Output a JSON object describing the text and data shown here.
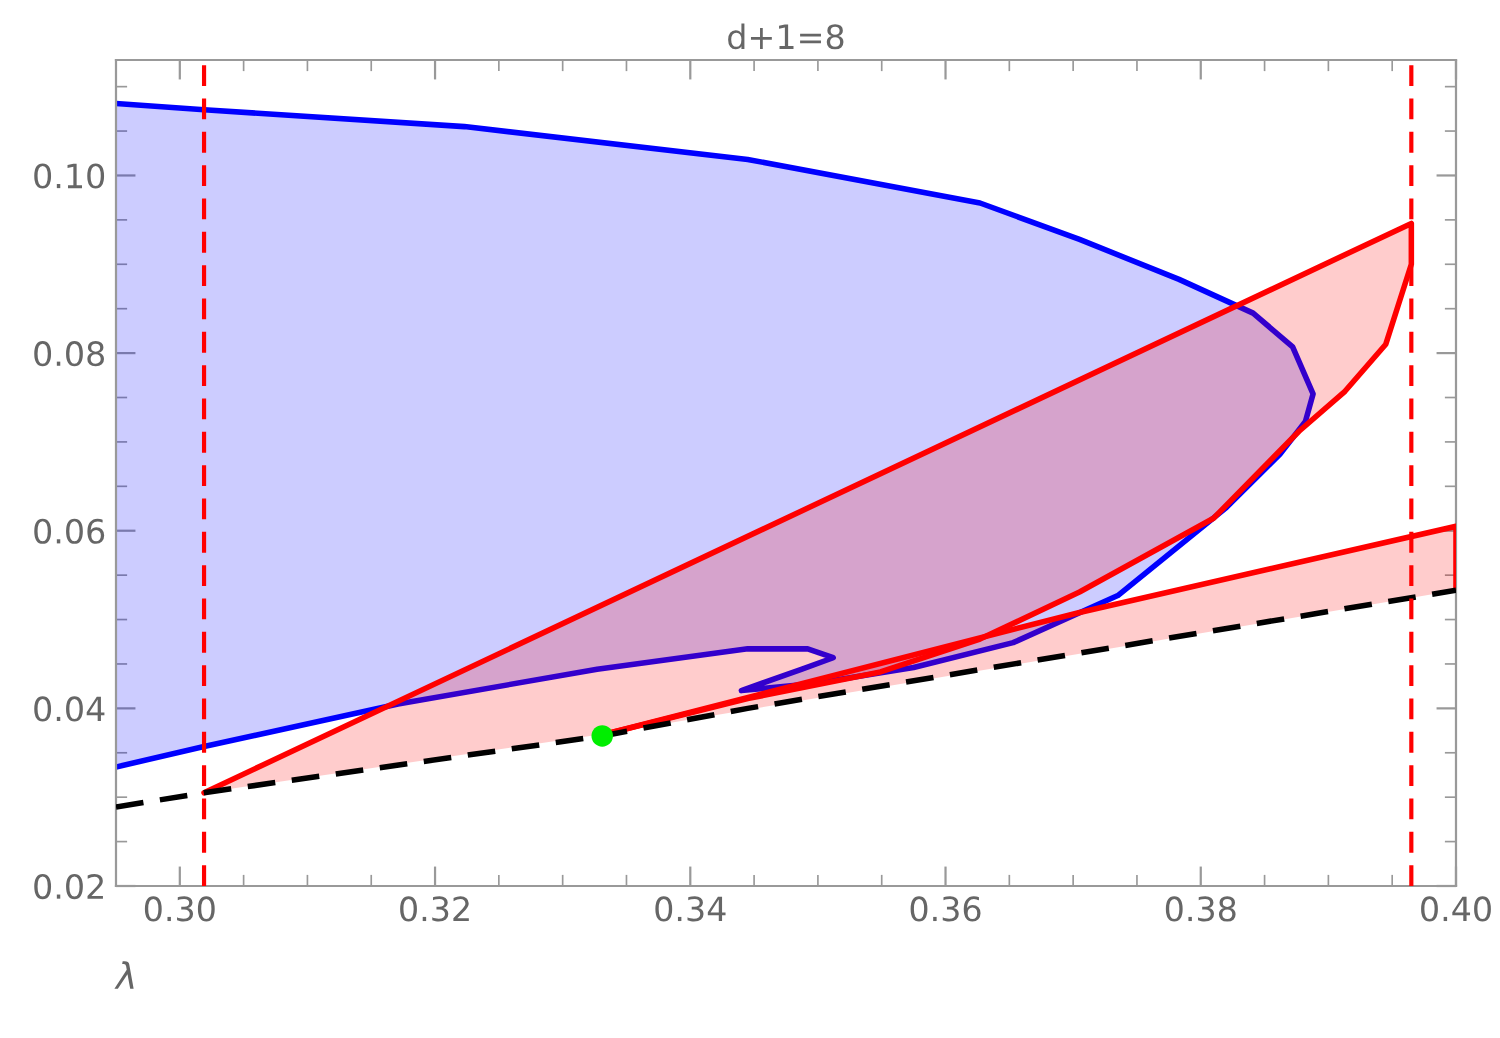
{
  "chart_data": {
    "type": "line",
    "title": "d+1=8",
    "xlabel": "λ",
    "xlim": [
      0.295,
      0.4
    ],
    "ylim": [
      0.02,
      0.113
    ],
    "xticks": [
      {
        "value": 0.3,
        "label": "0.30"
      },
      0.32,
      0.34,
      0.36,
      0.38,
      {
        "value": 0.4,
        "label": "0.40"
      }
    ],
    "yticks": [
      0.02,
      0.04,
      0.06,
      0.08,
      {
        "value": 0.1,
        "label": "0.10"
      }
    ],
    "grid": false,
    "legend": false,
    "series": [
      {
        "type": "area",
        "color": "#0000ff",
        "x": [
          0.295,
          0.3019,
          0.3223,
          0.3445,
          0.3627,
          0.3705,
          0.3783,
          0.3841,
          0.3872,
          0.3888,
          0.3882,
          0.3862,
          0.382,
          0.3735,
          0.3653,
          0.3575,
          0.3497,
          0.344,
          0.3487,
          0.3512,
          0.3492,
          0.3445,
          0.3327,
          0.3171,
          0.3019,
          0.295
        ],
        "values": [
          0.1081,
          0.1074,
          0.1055,
          0.1018,
          0.0969,
          0.0928,
          0.0883,
          0.0845,
          0.0807,
          0.0754,
          0.0723,
          0.0686,
          0.0626,
          0.0527,
          0.0474,
          0.0446,
          0.0428,
          0.042,
          0.0444,
          0.0457,
          0.0467,
          0.0467,
          0.0444,
          0.0405,
          0.0357,
          0.0334
        ]
      },
      {
        "type": "area",
        "color": "#ff0000",
        "x": [
          0.3019,
          0.3965,
          0.3965,
          0.3945,
          0.3913,
          0.3877,
          0.381,
          0.3705,
          0.3627,
          0.3549,
          0.3445,
          0.3336
        ],
        "values": [
          0.0305,
          0.0946,
          0.09,
          0.081,
          0.0757,
          0.0712,
          0.0614,
          0.0531,
          0.0478,
          0.0441,
          0.0411,
          0.0372
        ]
      },
      {
        "type": "area",
        "color": "#ff0000",
        "x": [
          0.3336,
          0.3705,
          0.4,
          0.4
        ],
        "values": [
          0.0372,
          0.0508,
          0.0605,
          0.0533
        ]
      },
      {
        "color": "#000000",
        "line_style": "dashed",
        "x": [
          0.295,
          0.3019,
          0.3331,
          0.3445,
          0.4
        ],
        "values": [
          0.0289,
          0.0305,
          0.0369,
          0.04,
          0.0533
        ]
      },
      {
        "type": "scatter",
        "color": "#00ee00",
        "marker": "circle",
        "x": [
          0.3331
        ],
        "values": [
          0.0369
        ]
      }
    ],
    "ref_lines": [
      {
        "axis": "x",
        "value": 0.3019,
        "color": "#ff0000",
        "line_style": "dashed"
      },
      {
        "axis": "x",
        "value": 0.3965,
        "color": "#ff0000",
        "line_style": "dashed"
      }
    ]
  }
}
